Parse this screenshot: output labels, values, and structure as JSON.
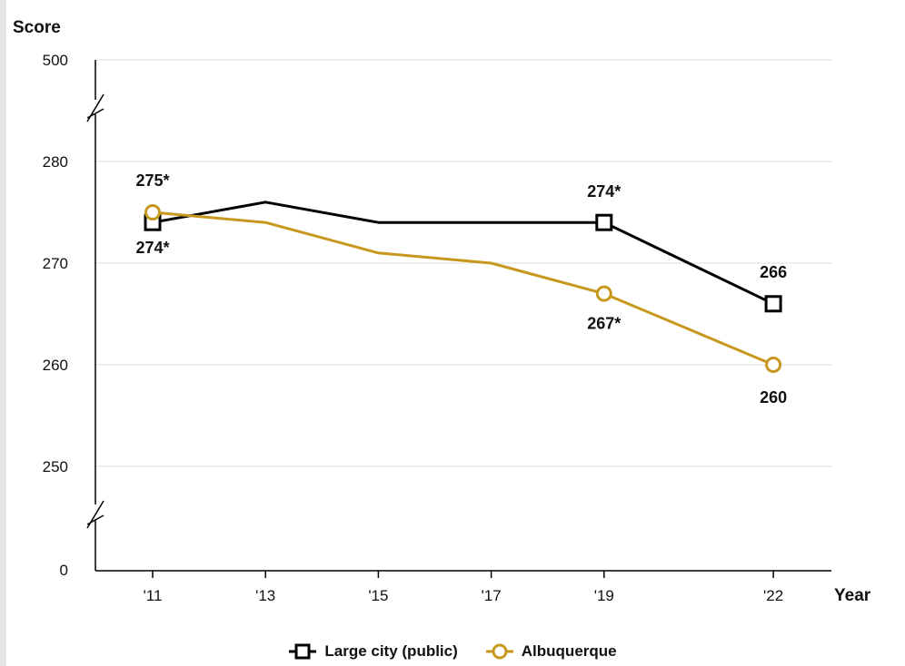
{
  "chart_data": {
    "type": "line",
    "ylabel": "Score",
    "xlabel": "Year",
    "categories": [
      "'11",
      "'13",
      "'15",
      "'17",
      "'19",
      "'22"
    ],
    "x_years": [
      2011,
      2013,
      2015,
      2017,
      2019,
      2022
    ],
    "yticks": [
      "500",
      "280",
      "270",
      "260",
      "250",
      "0"
    ],
    "axis_breaks": true,
    "ylim": [
      245,
      285
    ],
    "series": [
      {
        "name": "Large city (public)",
        "marker": "square",
        "color": "#000000",
        "values": [
          274,
          276,
          274,
          274,
          274,
          266
        ],
        "labels": [
          "274*",
          "",
          "",
          "",
          "274*",
          "266"
        ]
      },
      {
        "name": "Albuquerque",
        "marker": "circle",
        "color": "#c8981e",
        "values": [
          275,
          274,
          271,
          270,
          267,
          260
        ],
        "labels": [
          "275*",
          "",
          "",
          "",
          "267*",
          "260"
        ]
      }
    ]
  }
}
